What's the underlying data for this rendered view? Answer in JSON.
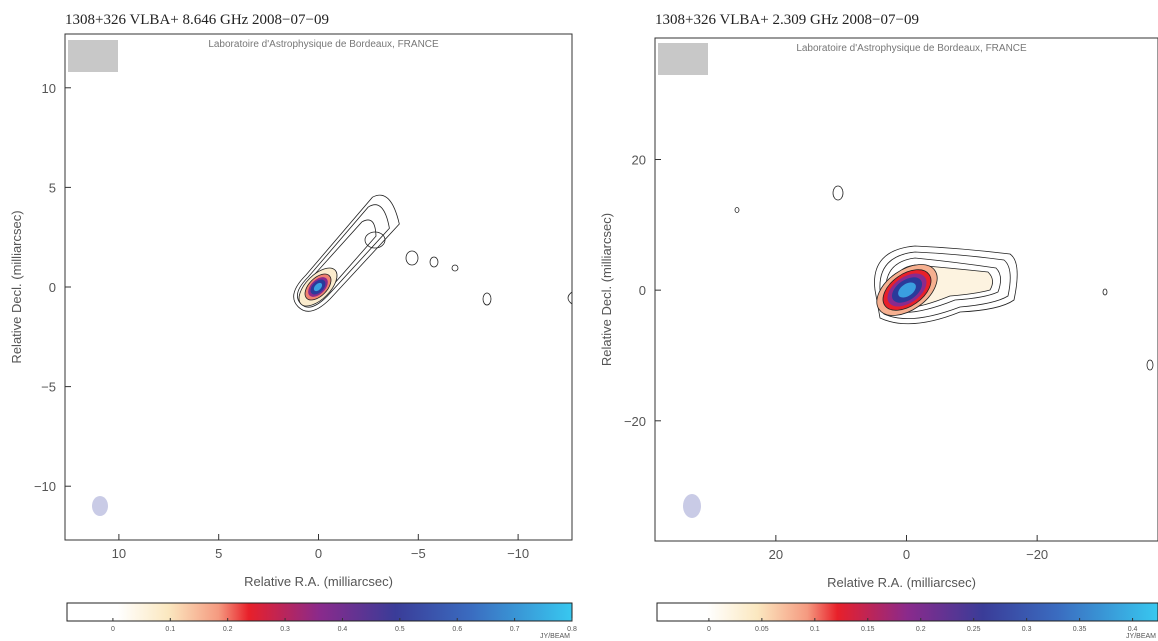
{
  "chart_data": [
    {
      "type": "contour-map",
      "title": "1308+326    VLBA+    8.646 GHz    2008−07−09",
      "credit": "Laboratoire d'Astrophysique de Bordeaux, FRANCE",
      "x_label": "Relative R.A. (milliarcsec)",
      "y_label": "Relative Decl. (milliarcsec)",
      "xlim": [
        12.7,
        -12.7
      ],
      "ylim": [
        -12.7,
        12.7
      ],
      "xticks": [
        10,
        5,
        0,
        {
          "value": -5,
          "label": "−5"
        },
        {
          "value": -10,
          "label": "−10"
        }
      ],
      "yticks": [
        10,
        5,
        0,
        {
          "value": -5,
          "label": "−5"
        },
        {
          "value": -10,
          "label": "−10"
        }
      ],
      "colorbar": {
        "label": "JY/BEAM",
        "lim": [
          -0.08,
          0.8
        ],
        "ticks": [
          0,
          0.1,
          0.2,
          0.3,
          0.4,
          0.5,
          0.6,
          0.7,
          0.8
        ]
      }
    },
    {
      "type": "contour-map",
      "title": "1308+326    VLBA+    2.309 GHz    2008−07−09",
      "credit": "Laboratoire d'Astrophysique de Bordeaux, FRANCE",
      "x_label": "Relative R.A. (milliarcsec)",
      "y_label": "Relative Decl. (milliarcsec)",
      "xlim": [
        38.5,
        -38.5
      ],
      "ylim": [
        -38.4,
        38.6
      ],
      "xticks": [
        20,
        0,
        {
          "value": -20,
          "label": "−20"
        }
      ],
      "yticks": [
        20,
        0,
        {
          "value": -20,
          "label": "−20"
        }
      ],
      "colorbar": {
        "label": "JY/BEAM",
        "lim": [
          -0.049,
          0.424
        ],
        "ticks": [
          0,
          0.05,
          0.1,
          0.15,
          0.2,
          0.25,
          0.3,
          0.35,
          0.4
        ]
      }
    }
  ]
}
